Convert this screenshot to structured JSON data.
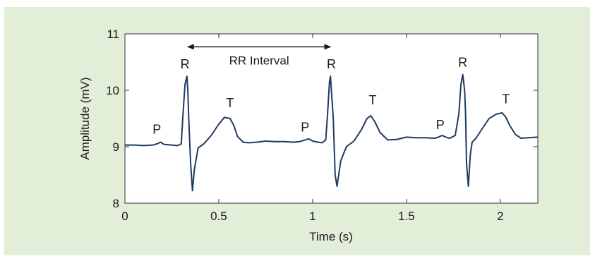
{
  "chart_data": {
    "type": "line",
    "xlabel": "Time (s)",
    "ylabel": "Amplitude (mV)",
    "xlim": [
      0,
      2.2
    ],
    "ylim": [
      8,
      11
    ],
    "xticks": [
      0,
      0.5,
      1,
      1.5,
      2
    ],
    "xtick_labels": [
      "0",
      "0.5",
      "1",
      "1.5",
      "2"
    ],
    "yticks": [
      8,
      9,
      10,
      11
    ],
    "ytick_labels": [
      "8",
      "9",
      "10",
      "11"
    ],
    "grid": false,
    "line_color": "#1f3a5f",
    "background_color": "#e2eed8",
    "series": [
      {
        "x": [
          0,
          0.05,
          0.1,
          0.15,
          0.17,
          0.19,
          0.21,
          0.25,
          0.28,
          0.3,
          0.31,
          0.32,
          0.33,
          0.335,
          0.34,
          0.35,
          0.36,
          0.37,
          0.39,
          0.42,
          0.46,
          0.5,
          0.53,
          0.56,
          0.58,
          0.6,
          0.63,
          0.66,
          0.7,
          0.75,
          0.8,
          0.85,
          0.9,
          0.93,
          0.96,
          0.98,
          1.0,
          1.03,
          1.05,
          1.07,
          1.08,
          1.09,
          1.095,
          1.1,
          1.11,
          1.12,
          1.13,
          1.15,
          1.18,
          1.22,
          1.26,
          1.29,
          1.31,
          1.33,
          1.36,
          1.4,
          1.45,
          1.5,
          1.55,
          1.6,
          1.65,
          1.67,
          1.69,
          1.71,
          1.73,
          1.76,
          1.78,
          1.79,
          1.8,
          1.81,
          1.815,
          1.82,
          1.83,
          1.84,
          1.85,
          1.87,
          1.9,
          1.94,
          1.98,
          2.01,
          2.03,
          2.05,
          2.08,
          2.11,
          2.15,
          2.2
        ],
        "y": [
          9.03,
          9.03,
          9.02,
          9.03,
          9.05,
          9.08,
          9.04,
          9.03,
          9.02,
          9.05,
          9.6,
          10.1,
          10.25,
          10.0,
          9.5,
          8.7,
          8.22,
          8.6,
          8.98,
          9.05,
          9.2,
          9.4,
          9.52,
          9.5,
          9.38,
          9.18,
          9.08,
          9.07,
          9.08,
          9.1,
          9.09,
          9.09,
          9.08,
          9.09,
          9.12,
          9.14,
          9.1,
          9.08,
          9.07,
          9.12,
          9.6,
          10.15,
          10.25,
          10.0,
          9.5,
          8.5,
          8.3,
          8.75,
          9.0,
          9.1,
          9.3,
          9.5,
          9.55,
          9.45,
          9.25,
          9.12,
          9.13,
          9.17,
          9.16,
          9.16,
          9.15,
          9.17,
          9.2,
          9.17,
          9.15,
          9.2,
          9.6,
          10.1,
          10.28,
          10.0,
          9.6,
          8.7,
          8.3,
          8.85,
          9.08,
          9.15,
          9.3,
          9.5,
          9.58,
          9.6,
          9.52,
          9.38,
          9.22,
          9.15,
          9.16,
          9.17
        ]
      }
    ],
    "wave_labels": [
      {
        "text": "P",
        "x": 0.17,
        "y": 9.23
      },
      {
        "text": "R",
        "x": 0.32,
        "y": 10.39
      },
      {
        "text": "T",
        "x": 0.56,
        "y": 9.7
      },
      {
        "text": "P",
        "x": 0.96,
        "y": 9.27
      },
      {
        "text": "R",
        "x": 1.1,
        "y": 10.39
      },
      {
        "text": "T",
        "x": 1.32,
        "y": 9.75
      },
      {
        "text": "P",
        "x": 1.68,
        "y": 9.31
      },
      {
        "text": "R",
        "x": 1.8,
        "y": 10.42
      },
      {
        "text": "T",
        "x": 2.03,
        "y": 9.77
      }
    ],
    "interval_annotation": {
      "label": "RR Interval",
      "x_start": 0.33,
      "x_end": 1.1,
      "y": 10.77
    }
  }
}
